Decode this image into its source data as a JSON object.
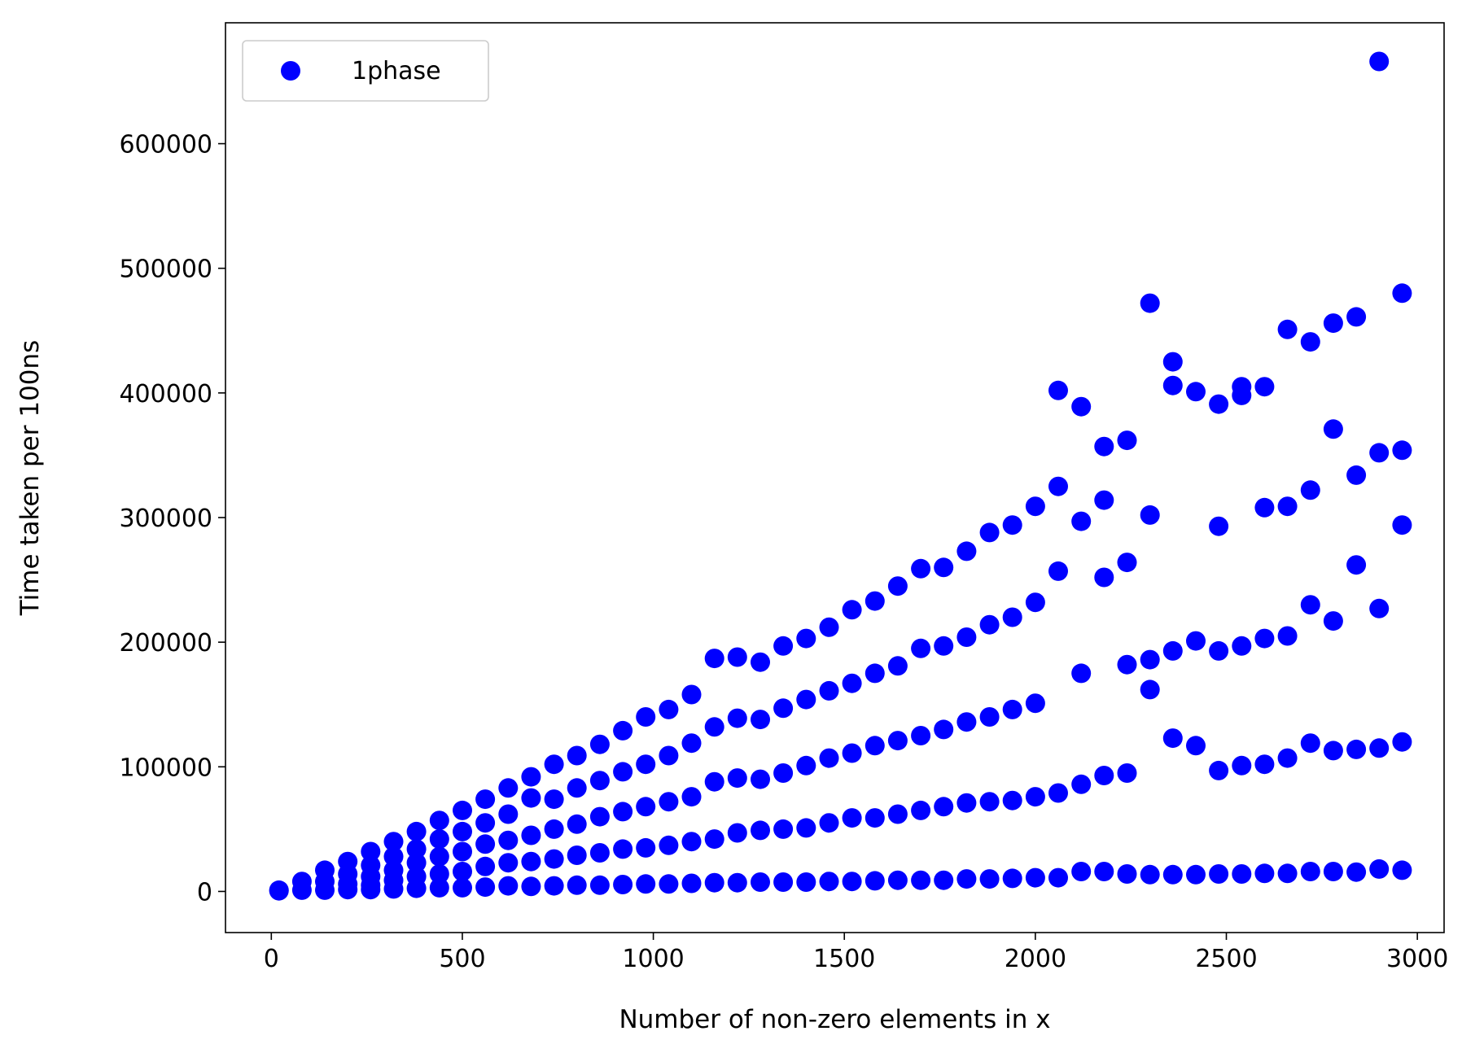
{
  "chart_data": {
    "type": "scatter",
    "title": "",
    "xlabel": "Number of non-zero elements in x",
    "ylabel": "Time taken per 100ns",
    "xlim": [
      -120,
      3070
    ],
    "ylim": [
      -33000,
      697000
    ],
    "xticks": [
      0,
      500,
      1000,
      1500,
      2000,
      2500,
      3000
    ],
    "xtick_labels": [
      "0",
      "500",
      "1000",
      "1500",
      "2000",
      "2500",
      "3000"
    ],
    "yticks": [
      0,
      100000,
      200000,
      300000,
      400000,
      500000,
      600000
    ],
    "ytick_labels": [
      "0",
      "100000",
      "200000",
      "300000",
      "400000",
      "500000",
      "600000"
    ],
    "grid": false,
    "legend_position": "top-left",
    "series": [
      {
        "name": "1phase",
        "color": "#0000ff",
        "points": [
          [
            20,
            1000
          ],
          [
            20,
            500
          ],
          [
            80,
            8000
          ],
          [
            80,
            1000
          ],
          [
            140,
            17000
          ],
          [
            140,
            8000
          ],
          [
            140,
            1000
          ],
          [
            200,
            24000
          ],
          [
            200,
            14000
          ],
          [
            200,
            6000
          ],
          [
            200,
            1500
          ],
          [
            260,
            32000
          ],
          [
            260,
            21000
          ],
          [
            260,
            12000
          ],
          [
            260,
            5000
          ],
          [
            260,
            1500
          ],
          [
            320,
            40000
          ],
          [
            320,
            28000
          ],
          [
            320,
            17000
          ],
          [
            320,
            9000
          ],
          [
            320,
            2000
          ],
          [
            380,
            48000
          ],
          [
            380,
            34000
          ],
          [
            380,
            23000
          ],
          [
            380,
            12000
          ],
          [
            380,
            2500
          ],
          [
            440,
            57000
          ],
          [
            440,
            42000
          ],
          [
            440,
            28000
          ],
          [
            440,
            14000
          ],
          [
            440,
            3000
          ],
          [
            500,
            65000
          ],
          [
            500,
            48000
          ],
          [
            500,
            32000
          ],
          [
            500,
            16000
          ],
          [
            500,
            3000
          ],
          [
            560,
            74000
          ],
          [
            560,
            55000
          ],
          [
            560,
            38000
          ],
          [
            560,
            20000
          ],
          [
            560,
            3500
          ],
          [
            620,
            83000
          ],
          [
            620,
            62000
          ],
          [
            620,
            41000
          ],
          [
            620,
            23000
          ],
          [
            620,
            4500
          ],
          [
            680,
            92000
          ],
          [
            680,
            75000
          ],
          [
            680,
            45000
          ],
          [
            680,
            24000
          ],
          [
            680,
            4000
          ],
          [
            740,
            102000
          ],
          [
            740,
            74000
          ],
          [
            740,
            50000
          ],
          [
            740,
            26000
          ],
          [
            740,
            4500
          ],
          [
            800,
            109000
          ],
          [
            800,
            83000
          ],
          [
            800,
            54000
          ],
          [
            800,
            29000
          ],
          [
            800,
            5000
          ],
          [
            860,
            118000
          ],
          [
            860,
            89000
          ],
          [
            860,
            60000
          ],
          [
            860,
            31000
          ],
          [
            860,
            5000
          ],
          [
            920,
            129000
          ],
          [
            920,
            96000
          ],
          [
            920,
            64000
          ],
          [
            920,
            34000
          ],
          [
            920,
            5500
          ],
          [
            980,
            140000
          ],
          [
            980,
            102000
          ],
          [
            980,
            68000
          ],
          [
            980,
            35000
          ],
          [
            980,
            6000
          ],
          [
            1040,
            146000
          ],
          [
            1040,
            109000
          ],
          [
            1040,
            72000
          ],
          [
            1040,
            37000
          ],
          [
            1040,
            6000
          ],
          [
            1100,
            158000
          ],
          [
            1100,
            119000
          ],
          [
            1100,
            76000
          ],
          [
            1100,
            40000
          ],
          [
            1100,
            6500
          ],
          [
            1160,
            187000
          ],
          [
            1160,
            132000
          ],
          [
            1160,
            88000
          ],
          [
            1160,
            42000
          ],
          [
            1160,
            7000
          ],
          [
            1220,
            188000
          ],
          [
            1220,
            139000
          ],
          [
            1220,
            91000
          ],
          [
            1220,
            47000
          ],
          [
            1220,
            7000
          ],
          [
            1280,
            184000
          ],
          [
            1280,
            138000
          ],
          [
            1280,
            90000
          ],
          [
            1280,
            49000
          ],
          [
            1280,
            7500
          ],
          [
            1340,
            197000
          ],
          [
            1340,
            147000
          ],
          [
            1340,
            95000
          ],
          [
            1340,
            50000
          ],
          [
            1340,
            7500
          ],
          [
            1400,
            203000
          ],
          [
            1400,
            154000
          ],
          [
            1400,
            101000
          ],
          [
            1400,
            51000
          ],
          [
            1400,
            7500
          ],
          [
            1460,
            212000
          ],
          [
            1460,
            161000
          ],
          [
            1460,
            107000
          ],
          [
            1460,
            55000
          ],
          [
            1460,
            8000
          ],
          [
            1520,
            226000
          ],
          [
            1520,
            167000
          ],
          [
            1520,
            111000
          ],
          [
            1520,
            59000
          ],
          [
            1520,
            8000
          ],
          [
            1580,
            233000
          ],
          [
            1580,
            175000
          ],
          [
            1580,
            117000
          ],
          [
            1580,
            59000
          ],
          [
            1580,
            8500
          ],
          [
            1640,
            245000
          ],
          [
            1640,
            181000
          ],
          [
            1640,
            121000
          ],
          [
            1640,
            62000
          ],
          [
            1640,
            9000
          ],
          [
            1700,
            259000
          ],
          [
            1700,
            195000
          ],
          [
            1700,
            125000
          ],
          [
            1700,
            65000
          ],
          [
            1700,
            9000
          ],
          [
            1760,
            260000
          ],
          [
            1760,
            197000
          ],
          [
            1760,
            130000
          ],
          [
            1760,
            68000
          ],
          [
            1760,
            9000
          ],
          [
            1820,
            273000
          ],
          [
            1820,
            204000
          ],
          [
            1820,
            136000
          ],
          [
            1820,
            71000
          ],
          [
            1820,
            10000
          ],
          [
            1880,
            288000
          ],
          [
            1880,
            214000
          ],
          [
            1880,
            140000
          ],
          [
            1880,
            72000
          ],
          [
            1880,
            10000
          ],
          [
            1940,
            294000
          ],
          [
            1940,
            220000
          ],
          [
            1940,
            146000
          ],
          [
            1940,
            73000
          ],
          [
            1940,
            10500
          ],
          [
            2000,
            309000
          ],
          [
            2000,
            232000
          ],
          [
            2000,
            151000
          ],
          [
            2000,
            76000
          ],
          [
            2000,
            11000
          ],
          [
            2060,
            402000
          ],
          [
            2060,
            325000
          ],
          [
            2060,
            257000
          ],
          [
            2060,
            79000
          ],
          [
            2060,
            11000
          ],
          [
            2120,
            389000
          ],
          [
            2120,
            297000
          ],
          [
            2120,
            175000
          ],
          [
            2120,
            86000
          ],
          [
            2120,
            16000
          ],
          [
            2180,
            357000
          ],
          [
            2180,
            314000
          ],
          [
            2180,
            252000
          ],
          [
            2180,
            93000
          ],
          [
            2180,
            16000
          ],
          [
            2240,
            362000
          ],
          [
            2240,
            264000
          ],
          [
            2240,
            182000
          ],
          [
            2240,
            95000
          ],
          [
            2240,
            14000
          ],
          [
            2300,
            472000
          ],
          [
            2300,
            302000
          ],
          [
            2300,
            186000
          ],
          [
            2300,
            162000
          ],
          [
            2300,
            13500
          ],
          [
            2360,
            425000
          ],
          [
            2360,
            406000
          ],
          [
            2360,
            193000
          ],
          [
            2360,
            123000
          ],
          [
            2360,
            13500
          ],
          [
            2420,
            401000
          ],
          [
            2420,
            201000
          ],
          [
            2420,
            117000
          ],
          [
            2420,
            13500
          ],
          [
            2480,
            391000
          ],
          [
            2480,
            293000
          ],
          [
            2480,
            193000
          ],
          [
            2480,
            97000
          ],
          [
            2480,
            14000
          ],
          [
            2540,
            405000
          ],
          [
            2540,
            398000
          ],
          [
            2540,
            197000
          ],
          [
            2540,
            101000
          ],
          [
            2540,
            14000
          ],
          [
            2600,
            405000
          ],
          [
            2600,
            308000
          ],
          [
            2600,
            203000
          ],
          [
            2600,
            102000
          ],
          [
            2600,
            14500
          ],
          [
            2660,
            451000
          ],
          [
            2660,
            309000
          ],
          [
            2660,
            205000
          ],
          [
            2660,
            107000
          ],
          [
            2660,
            14500
          ],
          [
            2720,
            441000
          ],
          [
            2720,
            322000
          ],
          [
            2720,
            230000
          ],
          [
            2720,
            119000
          ],
          [
            2720,
            16000
          ],
          [
            2780,
            456000
          ],
          [
            2780,
            371000
          ],
          [
            2780,
            217000
          ],
          [
            2780,
            113000
          ],
          [
            2780,
            16000
          ],
          [
            2840,
            461000
          ],
          [
            2840,
            334000
          ],
          [
            2840,
            262000
          ],
          [
            2840,
            114000
          ],
          [
            2840,
            15500
          ],
          [
            2900,
            666000
          ],
          [
            2900,
            352000
          ],
          [
            2900,
            227000
          ],
          [
            2900,
            115000
          ],
          [
            2900,
            18000
          ],
          [
            2960,
            480000
          ],
          [
            2960,
            354000
          ],
          [
            2960,
            294000
          ],
          [
            2960,
            120000
          ],
          [
            2960,
            17000
          ]
        ]
      }
    ]
  }
}
